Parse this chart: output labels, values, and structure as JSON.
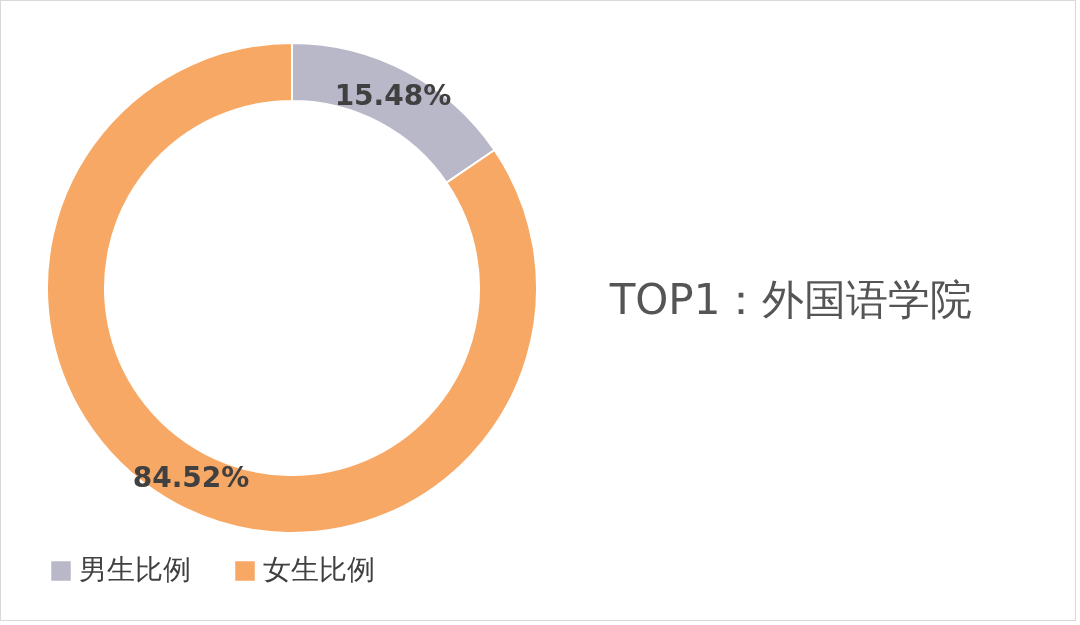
{
  "chart_data": {
    "type": "donut",
    "title": "TOP1：外国语学院",
    "categories": [
      "男生比例",
      "女生比例"
    ],
    "values": [
      15.48,
      84.52
    ],
    "value_labels": [
      "15.48%",
      "84.52%"
    ],
    "colors": [
      "#b9b8c9",
      "#f8a865"
    ],
    "legend": "bottom"
  }
}
